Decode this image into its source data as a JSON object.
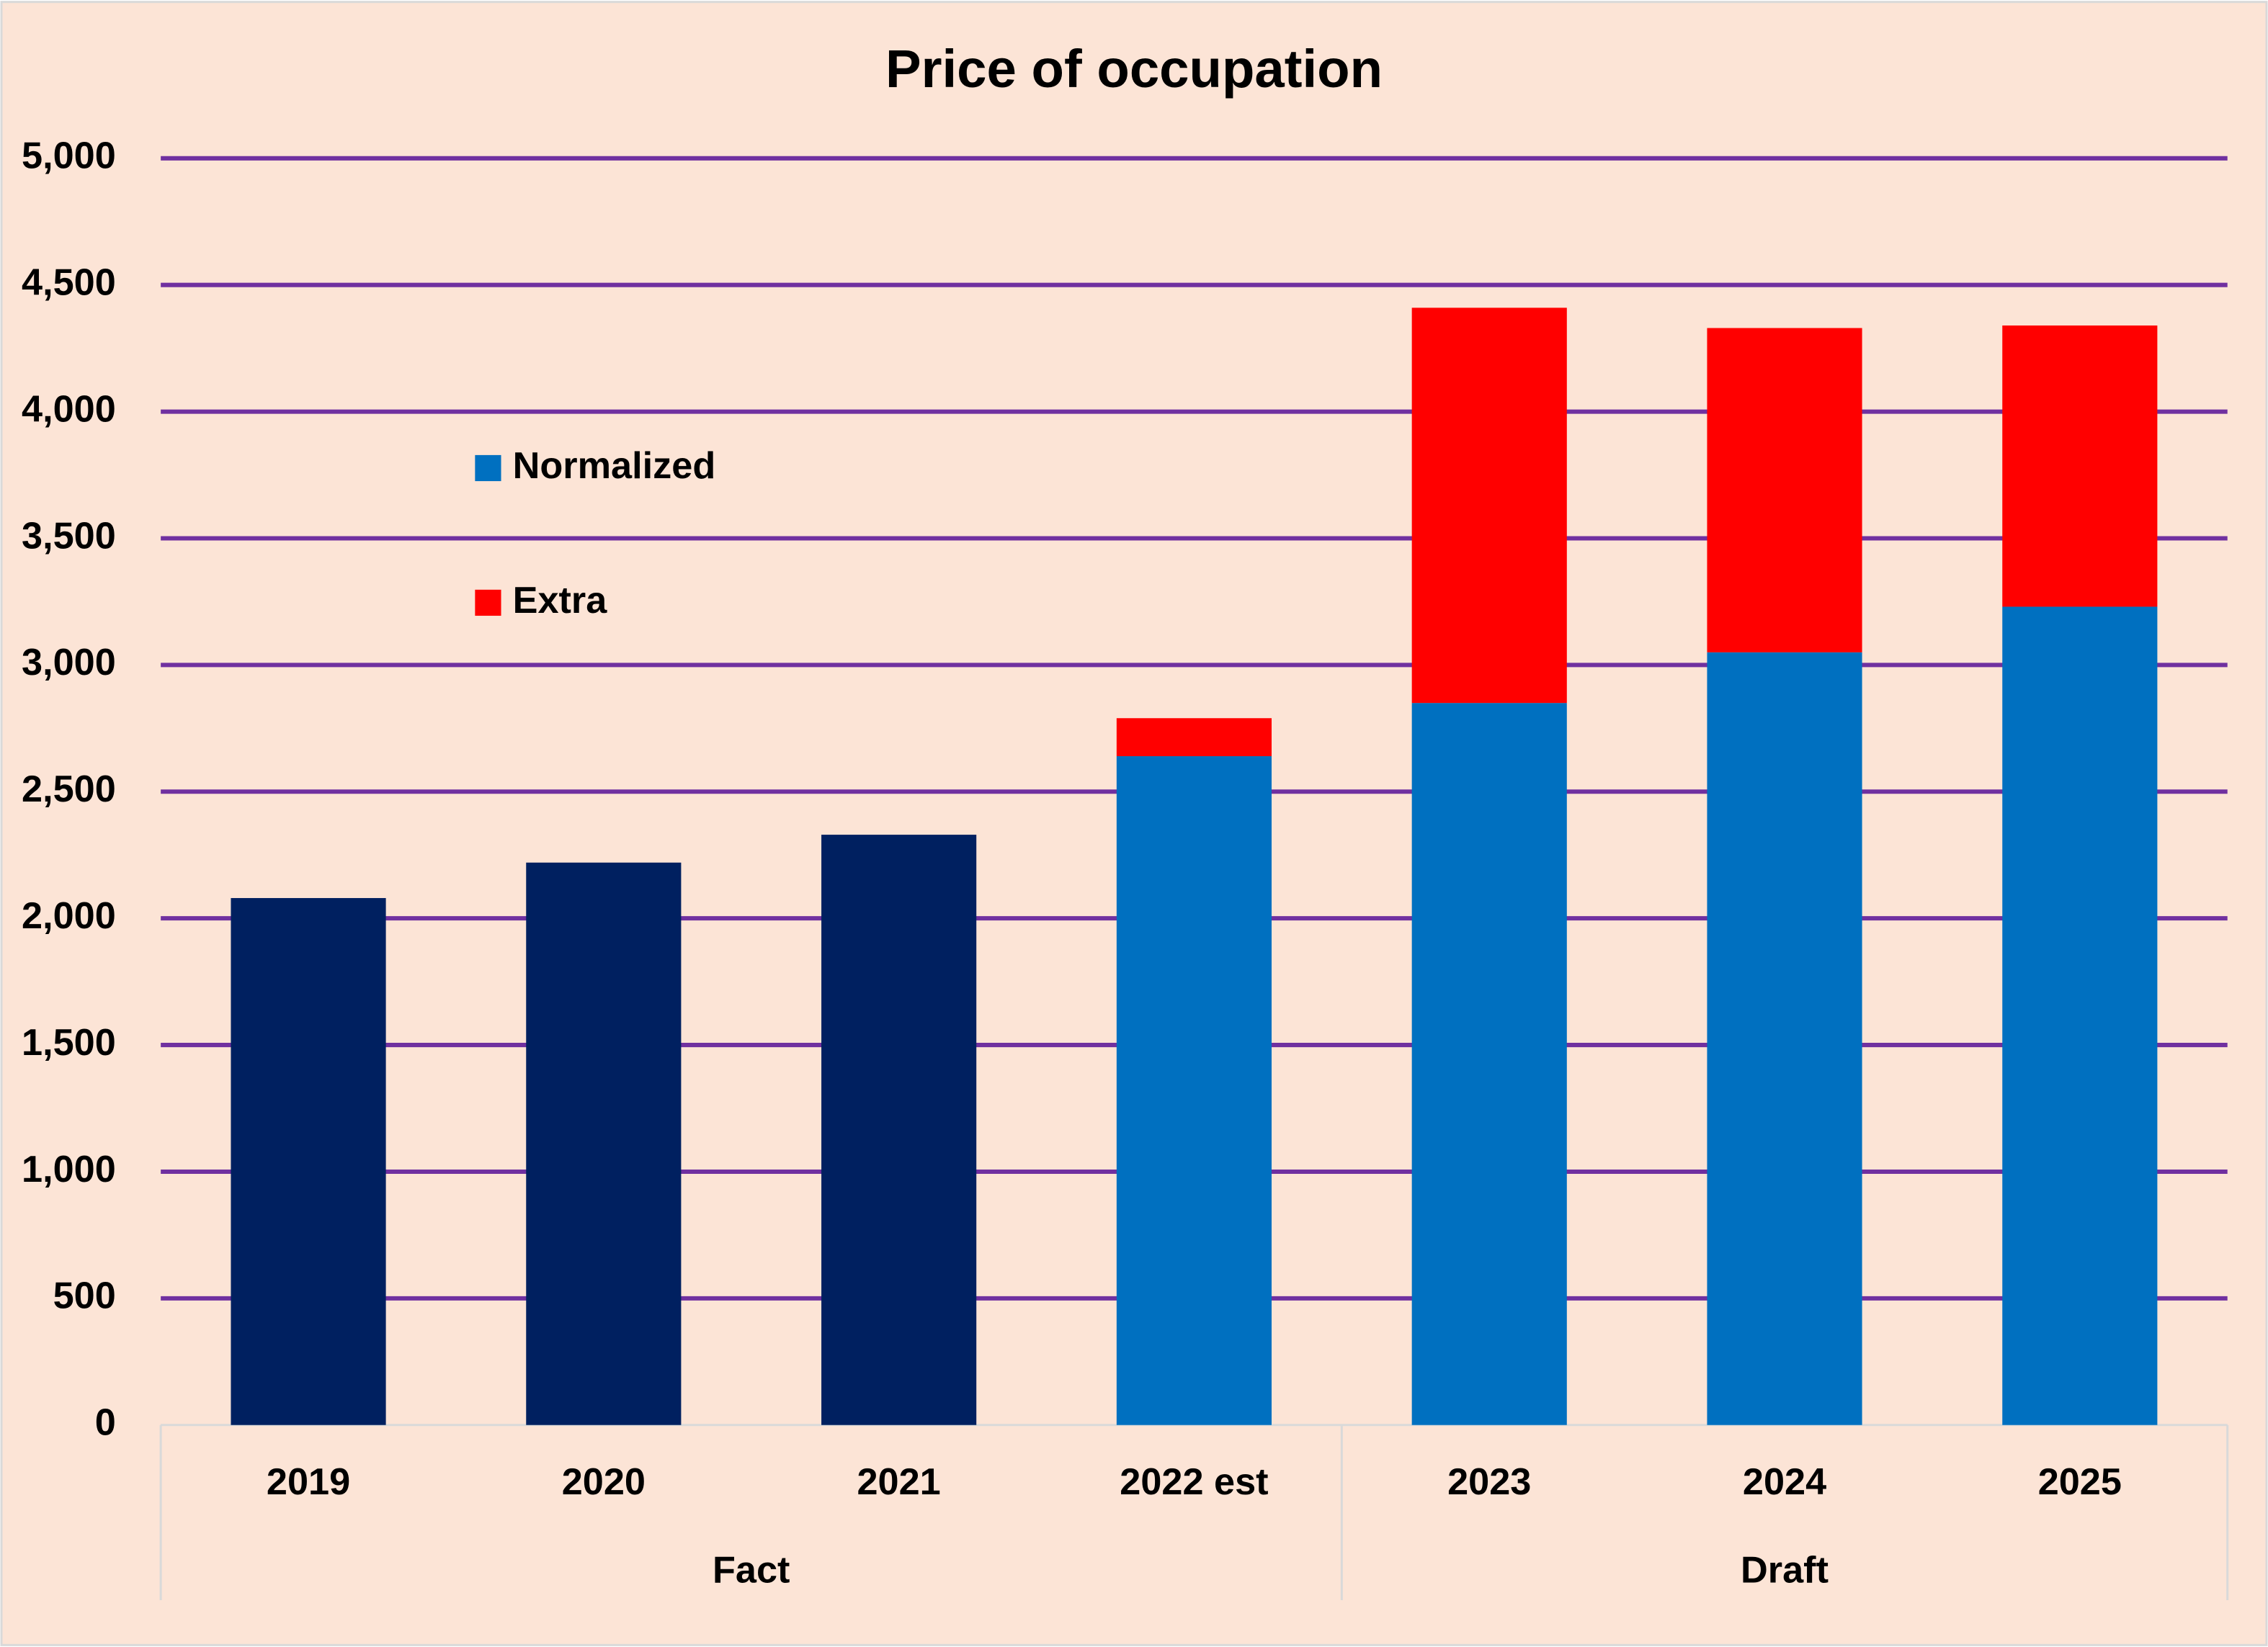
{
  "chart_data": {
    "type": "stacked-bar",
    "title": "Price of occupation",
    "categories": [
      "2019",
      "2020",
      "2021",
      "2022 est",
      "2023",
      "2024",
      "2025"
    ],
    "groups": [
      {
        "name": "Fact",
        "count": 4
      },
      {
        "name": "Draft",
        "count": 3
      }
    ],
    "series": [
      {
        "name": "Normalized",
        "color": "#0070C0",
        "colors": [
          "#002060",
          "#002060",
          "#002060",
          "#0070C0",
          "#0070C0",
          "#0070C0",
          "#0070C0"
        ],
        "values": [
          2080,
          2220,
          2330,
          2640,
          2850,
          3050,
          3230
        ]
      },
      {
        "name": "Extra",
        "color": "#FF0000",
        "values": [
          null,
          null,
          null,
          150,
          1560,
          1280,
          1110
        ]
      }
    ],
    "ylim": [
      0,
      5000
    ],
    "yticks": [
      0,
      {
        "value": 500,
        "label": "500"
      },
      {
        "value": 1000,
        "label": "1,000"
      },
      {
        "value": 1500,
        "label": "1,500"
      },
      {
        "value": 2000,
        "label": "2,000"
      },
      {
        "value": 2500,
        "label": "2,500"
      },
      {
        "value": 3000,
        "label": "3,000"
      },
      {
        "value": 3500,
        "label": "3,500"
      },
      {
        "value": 4000,
        "label": "4,000"
      },
      {
        "value": 4500,
        "label": "4,500"
      },
      {
        "value": 5000,
        "label": "5,000"
      }
    ],
    "grid": true,
    "grid_color": "#7030A0",
    "background": "#FCE4D6",
    "legend": "left"
  }
}
